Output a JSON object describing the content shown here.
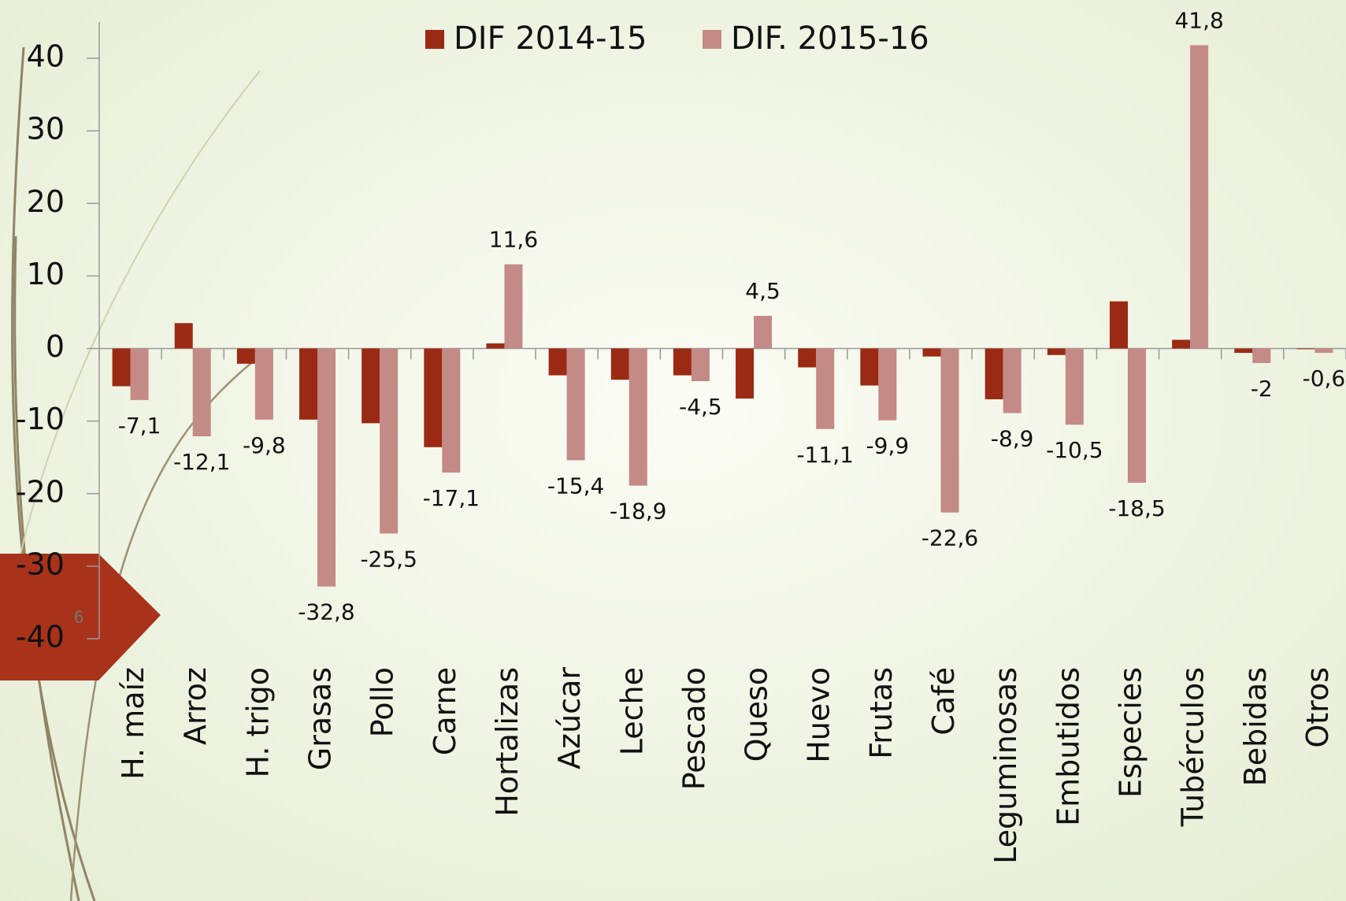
{
  "chart_data": {
    "type": "bar",
    "categories": [
      "H. maíz",
      "Arroz",
      "H. trigo",
      "Grasas",
      "Pollo",
      "Carne",
      "Hortalizas",
      "Azúcar",
      "Leche",
      "Pescado",
      "Queso",
      "Huevo",
      "Frutas",
      "Café",
      "Leguminosas",
      "Embutidos",
      "Especies",
      "Tubérculos",
      "Bebidas",
      "Otros"
    ],
    "series": [
      {
        "name": "DIF 2014-15",
        "color": "#9b2a14",
        "values": [
          -5.2,
          3.5,
          -2.1,
          -9.8,
          -10.3,
          -13.6,
          0.7,
          -3.7,
          -4.3,
          -3.7,
          -6.9,
          -2.6,
          -5.1,
          -1.1,
          -7,
          -0.9,
          6.5,
          1.2,
          -0.6,
          -0.1
        ]
      },
      {
        "name": "DIF. 2015-16",
        "color": "#c48a86",
        "values": [
          -7.1,
          -12.1,
          -9.8,
          -32.8,
          -25.5,
          -17.1,
          11.6,
          -15.4,
          -18.9,
          -4.5,
          4.5,
          -11.1,
          -9.9,
          -22.6,
          -8.9,
          -10.5,
          -18.5,
          41.8,
          -2,
          -0.6
        ],
        "value_labels": [
          "-7,1",
          "-12,1",
          "-9,8",
          "-32,8",
          "-25,5",
          "-17,1",
          "11,6",
          "-15,4",
          "-18,9",
          "-4,5",
          "4,5",
          "-11,1",
          "-9,9",
          "-22,6",
          "-8,9",
          "-10,5",
          "-18,5",
          "41,8",
          "-2",
          "-0,6"
        ]
      }
    ],
    "ylim": [
      -40,
      40
    ],
    "yticks": [
      -40,
      -30,
      -20,
      -10,
      0,
      10,
      20,
      30,
      40
    ],
    "legend": "top"
  },
  "slide_number": "6"
}
